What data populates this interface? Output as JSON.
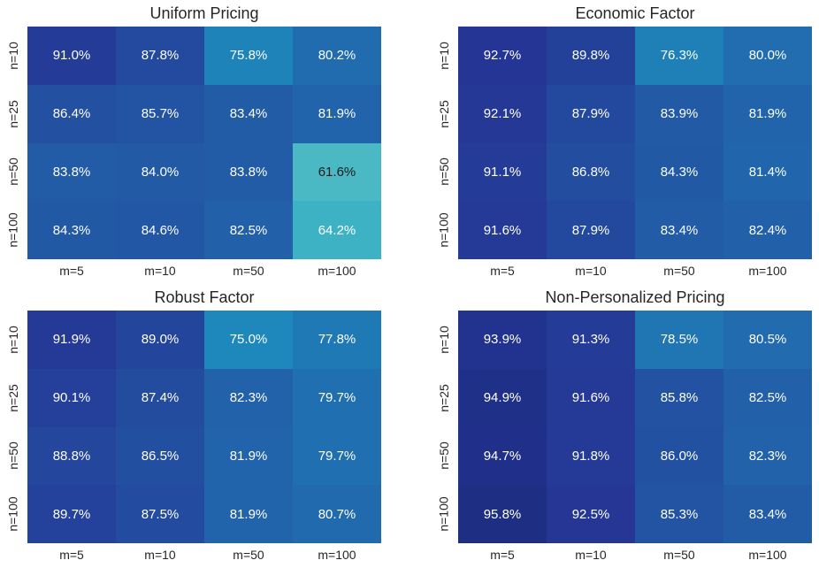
{
  "figure": {
    "background": "#ffffff",
    "text_color": "#262626"
  },
  "colormap": {
    "name": "YlGnBu",
    "stops": [
      "#ffffd9",
      "#edf8b1",
      "#c7e9b4",
      "#7fcdbb",
      "#41b6c4",
      "#1d91c0",
      "#225ea8",
      "#253494",
      "#081d58"
    ],
    "vmin": 23,
    "vmax": 103,
    "dark_text_below_pos": 0.49,
    "annotation_light_color": "#ffffff",
    "annotation_dark_color": "#1a1a1a"
  },
  "axis": {
    "row_labels": [
      "n=10",
      "n=25",
      "n=50",
      "n=100"
    ],
    "col_labels": [
      "m=5",
      "m=10",
      "m=50",
      "m=100"
    ]
  },
  "chart_data": [
    {
      "type": "heatmap",
      "title": "Uniform Pricing",
      "rows": [
        "n=10",
        "n=25",
        "n=50",
        "n=100"
      ],
      "cols": [
        "m=5",
        "m=10",
        "m=50",
        "m=100"
      ],
      "values": [
        [
          91.0,
          87.8,
          75.8,
          80.2
        ],
        [
          86.4,
          85.7,
          83.4,
          81.9
        ],
        [
          83.8,
          84.0,
          83.8,
          61.6
        ],
        [
          84.3,
          84.6,
          82.5,
          64.2
        ]
      ],
      "value_decimals": 1,
      "value_suffix": "%"
    },
    {
      "type": "heatmap",
      "title": "Economic Factor",
      "rows": [
        "n=10",
        "n=25",
        "n=50",
        "n=100"
      ],
      "cols": [
        "m=5",
        "m=10",
        "m=50",
        "m=100"
      ],
      "values": [
        [
          92.7,
          89.8,
          76.3,
          80.0
        ],
        [
          92.1,
          87.9,
          83.9,
          81.9
        ],
        [
          91.1,
          86.8,
          84.3,
          81.4
        ],
        [
          91.6,
          87.9,
          83.4,
          82.4
        ]
      ],
      "value_decimals": 1,
      "value_suffix": "%"
    },
    {
      "type": "heatmap",
      "title": "Robust Factor",
      "rows": [
        "n=10",
        "n=25",
        "n=50",
        "n=100"
      ],
      "cols": [
        "m=5",
        "m=10",
        "m=50",
        "m=100"
      ],
      "values": [
        [
          91.9,
          89.0,
          75.0,
          77.8
        ],
        [
          90.1,
          87.4,
          82.3,
          79.7
        ],
        [
          88.8,
          86.5,
          81.9,
          79.7
        ],
        [
          89.7,
          87.5,
          81.9,
          80.7
        ]
      ],
      "value_decimals": 1,
      "value_suffix": "%"
    },
    {
      "type": "heatmap",
      "title": "Non-Personalized Pricing",
      "rows": [
        "n=10",
        "n=25",
        "n=50",
        "n=100"
      ],
      "cols": [
        "m=5",
        "m=10",
        "m=50",
        "m=100"
      ],
      "values": [
        [
          93.9,
          91.3,
          78.5,
          80.5
        ],
        [
          94.9,
          91.6,
          85.8,
          82.5
        ],
        [
          94.7,
          91.8,
          86.0,
          82.3
        ],
        [
          95.8,
          92.5,
          85.3,
          83.4
        ]
      ],
      "value_decimals": 1,
      "value_suffix": "%"
    }
  ]
}
